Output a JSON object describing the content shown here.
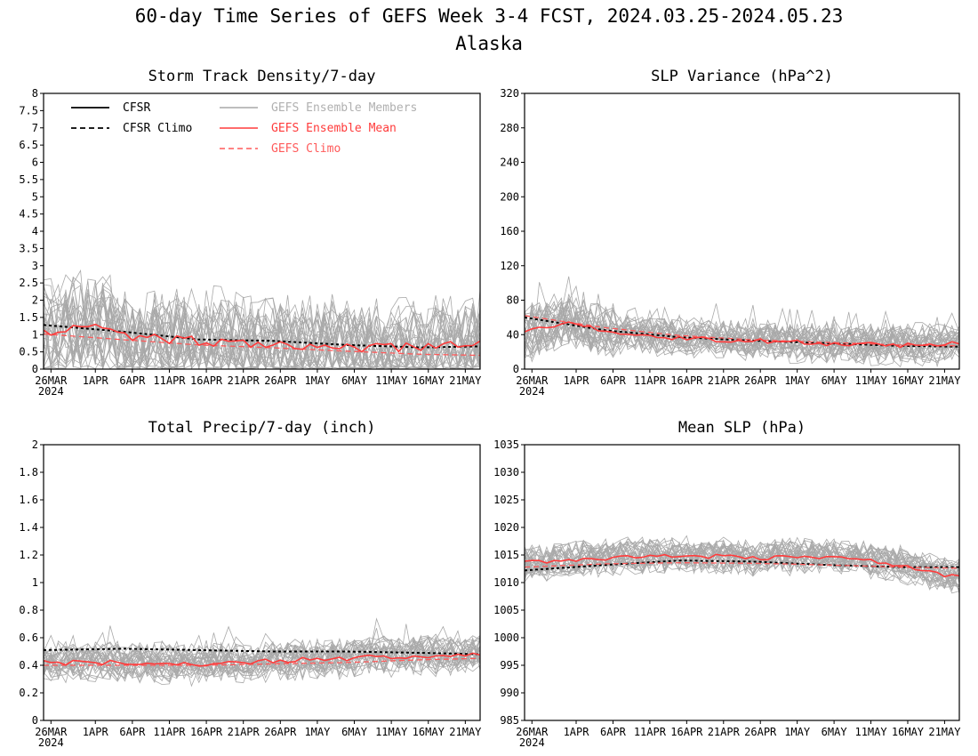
{
  "title": "60-day Time Series of GEFS Week 3-4 FCST, 2024.03.25-2024.05.23",
  "subtitle": "Alaska",
  "colors": {
    "members": "#a9a9a9",
    "ensemble_mean": "#ff3b3b",
    "gefs_climo": "#ff5a5a",
    "cfsr": "#000000",
    "legend_members_text": "#b0b0b0"
  },
  "legend": {
    "cfsr": "CFSR",
    "cfsr_climo": "CFSR Climo",
    "members": "GEFS Ensemble Members",
    "ensemble_mean": "GEFS Ensemble Mean",
    "gefs_climo": "GEFS Climo"
  },
  "x_axis": {
    "tick_labels": [
      "26MAR",
      "1APR",
      "6APR",
      "11APR",
      "16APR",
      "21APR",
      "26APR",
      "1MAY",
      "6MAY",
      "11MAY",
      "16MAY",
      "21MAY"
    ],
    "tick_days": [
      0,
      6,
      11,
      16,
      21,
      26,
      31,
      36,
      41,
      46,
      51,
      56
    ],
    "year_label": "2024",
    "x_range_days": [
      -1,
      58
    ]
  },
  "chart_data": [
    {
      "type": "line",
      "title": "Storm Track Density/7-day",
      "ylim": [
        0,
        8
      ],
      "y_ticks": [
        "0",
        "0.5",
        "1",
        "1.5",
        "2",
        "2.5",
        "3",
        "3.5",
        "4",
        "4.5",
        "5",
        "5.5",
        "6",
        "6.5",
        "7",
        "7.5",
        "8"
      ],
      "member_count": 30,
      "series": [
        {
          "name": "CFSR Climo",
          "knots_day": [
            -1,
            10,
            20,
            30,
            40,
            50,
            58
          ],
          "knots_value": [
            1.28,
            1.08,
            0.86,
            0.82,
            0.7,
            0.63,
            0.66
          ]
        },
        {
          "name": "GEFS Climo",
          "knots_day": [
            -1,
            10,
            20,
            30,
            40,
            50,
            58
          ],
          "knots_value": [
            1.02,
            0.85,
            0.7,
            0.62,
            0.52,
            0.43,
            0.4
          ]
        },
        {
          "name": "GEFS Ensemble Mean",
          "knots_day": [
            -1,
            5,
            10,
            20,
            30,
            40,
            50,
            58
          ],
          "knots_value": [
            1.08,
            1.3,
            0.95,
            0.8,
            0.76,
            0.6,
            0.62,
            0.78
          ]
        }
      ]
    },
    {
      "type": "line",
      "title": "SLP Variance (hPa^2)",
      "ylim": [
        0,
        320
      ],
      "y_ticks": [
        "0",
        "40",
        "80",
        "120",
        "160",
        "200",
        "240",
        "280",
        "320"
      ],
      "member_count": 30,
      "series": [
        {
          "name": "CFSR Climo",
          "knots_day": [
            -1,
            10,
            20,
            30,
            40,
            50,
            58
          ],
          "knots_value": [
            60,
            45,
            37,
            33,
            30,
            27,
            26
          ]
        },
        {
          "name": "GEFS Climo",
          "knots_day": [
            -1,
            10,
            20,
            30,
            40,
            50,
            58
          ],
          "knots_value": [
            62,
            48,
            39,
            34,
            31,
            28,
            27
          ]
        },
        {
          "name": "GEFS Ensemble Mean",
          "knots_day": [
            -1,
            5,
            10,
            20,
            30,
            40,
            50,
            58
          ],
          "knots_value": [
            42,
            56,
            42,
            36,
            33,
            30,
            28,
            29
          ]
        }
      ]
    },
    {
      "type": "line",
      "title": "Total Precip/7-day (inch)",
      "ylim": [
        0,
        2
      ],
      "y_ticks": [
        "0",
        "0.2",
        "0.4",
        "0.6",
        "0.8",
        "1",
        "1.2",
        "1.4",
        "1.6",
        "1.8",
        "2"
      ],
      "member_count": 30,
      "series": [
        {
          "name": "CFSR Climo",
          "knots_day": [
            -1,
            10,
            20,
            30,
            40,
            50,
            58
          ],
          "knots_value": [
            0.51,
            0.52,
            0.51,
            0.5,
            0.5,
            0.49,
            0.48
          ]
        },
        {
          "name": "GEFS Climo",
          "knots_day": [
            -1,
            10,
            20,
            30,
            40,
            50,
            58
          ],
          "knots_value": [
            0.4,
            0.4,
            0.4,
            0.41,
            0.42,
            0.44,
            0.45
          ]
        },
        {
          "name": "GEFS Ensemble Mean",
          "knots_day": [
            -1,
            10,
            20,
            30,
            40,
            50,
            58
          ],
          "knots_value": [
            0.42,
            0.42,
            0.4,
            0.43,
            0.45,
            0.47,
            0.48
          ]
        }
      ]
    },
    {
      "type": "line",
      "title": "Mean SLP (hPa)",
      "ylim": [
        985,
        1035
      ],
      "y_ticks": [
        "985",
        "990",
        "995",
        "1000",
        "1005",
        "1010",
        "1015",
        "1020",
        "1025",
        "1030",
        "1035"
      ],
      "member_count": 30,
      "series": [
        {
          "name": "CFSR Climo",
          "knots_day": [
            -1,
            10,
            20,
            30,
            40,
            50,
            58
          ],
          "knots_value": [
            1012.2,
            1013.2,
            1014.0,
            1013.8,
            1013.2,
            1012.8,
            1012.8
          ]
        },
        {
          "name": "GEFS Climo",
          "knots_day": [
            -1,
            10,
            20,
            30,
            40,
            50,
            58
          ],
          "knots_value": [
            1012.8,
            1013.4,
            1013.6,
            1013.5,
            1013.2,
            1012.8,
            1012.6
          ]
        },
        {
          "name": "GEFS Ensemble Mean",
          "knots_day": [
            -1,
            10,
            20,
            30,
            40,
            45,
            50,
            55,
            58
          ],
          "knots_value": [
            1013.5,
            1014.5,
            1015.0,
            1014.5,
            1014.8,
            1014.2,
            1013.2,
            1011.6,
            1011.0
          ]
        }
      ]
    }
  ]
}
